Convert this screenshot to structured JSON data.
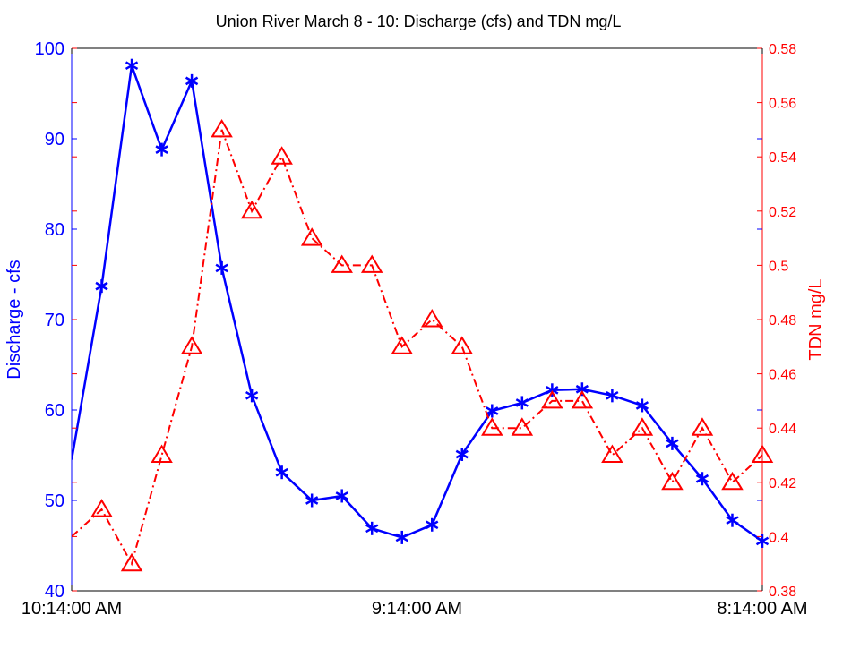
{
  "chart_data": {
    "type": "line",
    "title": "Union River March 8  - 10:  Discharge (cfs) and TDN mg/L",
    "ylabel_left": "Discharge - cfs",
    "ylabel_right": "TDN mg/L",
    "x_tick_labels": [
      "10:14:00 AM",
      "9:14:00 AM",
      "8:14:00 AM"
    ],
    "y_left_ticks": [
      "40",
      "50",
      "60",
      "70",
      "80",
      "90",
      "100"
    ],
    "y_right_ticks": [
      "0.38",
      "0.4",
      "0.42",
      "0.44",
      "0.46",
      "0.48",
      "0.5",
      "0.52",
      "0.54",
      "0.56",
      "0.58"
    ],
    "ylim_left": [
      40,
      100
    ],
    "ylim_right": [
      0.38,
      0.58
    ],
    "xlim": [
      0,
      23
    ],
    "grid": false,
    "colors": {
      "discharge": "#0000ff",
      "tdn": "#ff0000",
      "axes": "#000000"
    },
    "series": [
      {
        "axis": "left",
        "style": "solid line, asterisk markers",
        "x": [
          0,
          1,
          2,
          3,
          4,
          5,
          6,
          7,
          8,
          9,
          10,
          11,
          12,
          13,
          14,
          15,
          16,
          17,
          18,
          19,
          20,
          21,
          22,
          23
        ],
        "values": [
          54.5,
          73.7,
          98.1,
          88.8,
          96.4,
          75.7,
          61.6,
          53.1,
          50.0,
          50.5,
          46.9,
          45.9,
          47.3,
          55.1,
          59.9,
          60.8,
          62.2,
          62.3,
          61.6,
          60.5,
          56.3,
          52.4,
          47.8,
          45.5
        ]
      },
      {
        "axis": "right",
        "style": "dash-dot line, triangle markers",
        "x": [
          0,
          1,
          2,
          3,
          4,
          5,
          6,
          7,
          8,
          9,
          10,
          11,
          12,
          13,
          14,
          15,
          16,
          17,
          18,
          19,
          20,
          21,
          22,
          23
        ],
        "values": [
          0.4,
          0.41,
          0.39,
          0.43,
          0.47,
          0.55,
          0.52,
          0.54,
          0.51,
          0.5,
          0.5,
          0.47,
          0.48,
          0.47,
          0.44,
          0.44,
          0.45,
          0.45,
          0.43,
          0.44,
          0.42,
          0.44,
          0.42,
          0.43
        ]
      }
    ]
  }
}
